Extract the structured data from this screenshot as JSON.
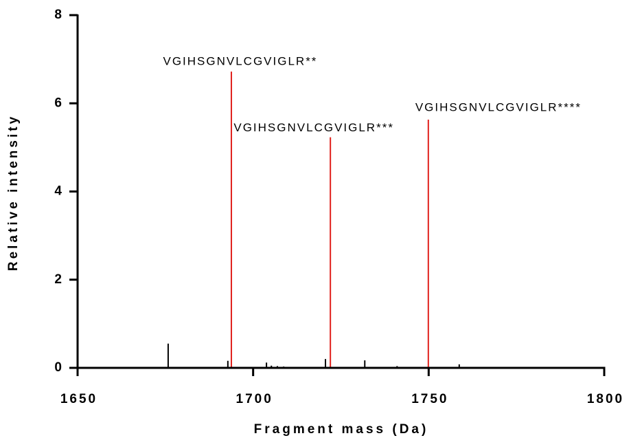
{
  "chart_data": {
    "type": "stem",
    "x_label": "Fragment mass (Da)",
    "y_label": "Relative intensity",
    "xlim": [
      1650,
      1800
    ],
    "xticks": [
      1650,
      1700,
      1750,
      1800
    ],
    "ylim": [
      0,
      8
    ],
    "yticks": [
      0,
      2,
      4,
      6,
      8
    ],
    "series": [
      {
        "color": "#000000",
        "x": [
          1670,
          1675.8,
          1692.8,
          1703.8,
          1705.2,
          1706.9,
          1708.7,
          1720.6,
          1731.8,
          1741,
          1758.7
        ],
        "values": [
          0.02,
          0.55,
          0.16,
          0.12,
          0.05,
          0.04,
          0.03,
          0.2,
          0.17,
          0.04,
          0.08
        ]
      },
      {
        "color": "#e0201b",
        "x": [
          1693.8,
          1722,
          1749.9
        ],
        "values": [
          6.72,
          5.23,
          5.63
        ],
        "annotations": [
          "VGIHSGNVLCGVIGLR**",
          "VGIHSGNVLCGVIGLR***",
          "VGIHSGNVLCGVIGLR****"
        ]
      }
    ]
  }
}
